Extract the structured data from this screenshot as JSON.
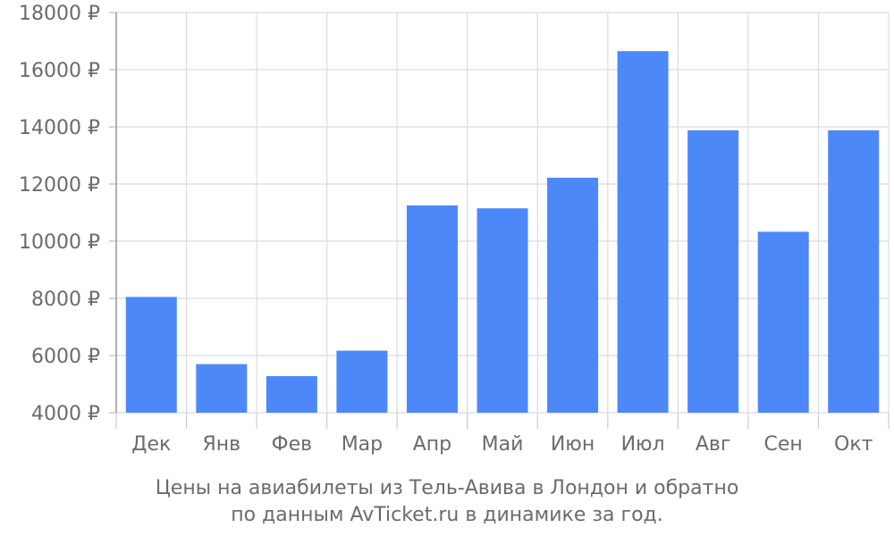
{
  "chart_data": {
    "type": "bar",
    "categories": [
      "Дек",
      "Янв",
      "Фев",
      "Мар",
      "Апр",
      "Май",
      "Июн",
      "Июл",
      "Авг",
      "Сен",
      "Окт"
    ],
    "values": [
      8050,
      5700,
      5280,
      6170,
      11250,
      11150,
      12220,
      16650,
      13880,
      10330,
      13880
    ],
    "ylim": [
      4000,
      18000
    ],
    "yticks": [
      4000,
      6000,
      8000,
      10000,
      12000,
      14000,
      16000,
      18000
    ],
    "ytick_labels": [
      "4000 ₽",
      "6000 ₽",
      "8000 ₽",
      "10000 ₽",
      "12000 ₽",
      "14000 ₽",
      "16000 ₽",
      "18000 ₽"
    ],
    "grid": true,
    "bar_color": "#4d88f9",
    "caption_line1": "Цены на авиабилеты из Тель-Авива в Лондон и обратно",
    "caption_line2": "по данным AvTicket.ru в динамике за год."
  }
}
